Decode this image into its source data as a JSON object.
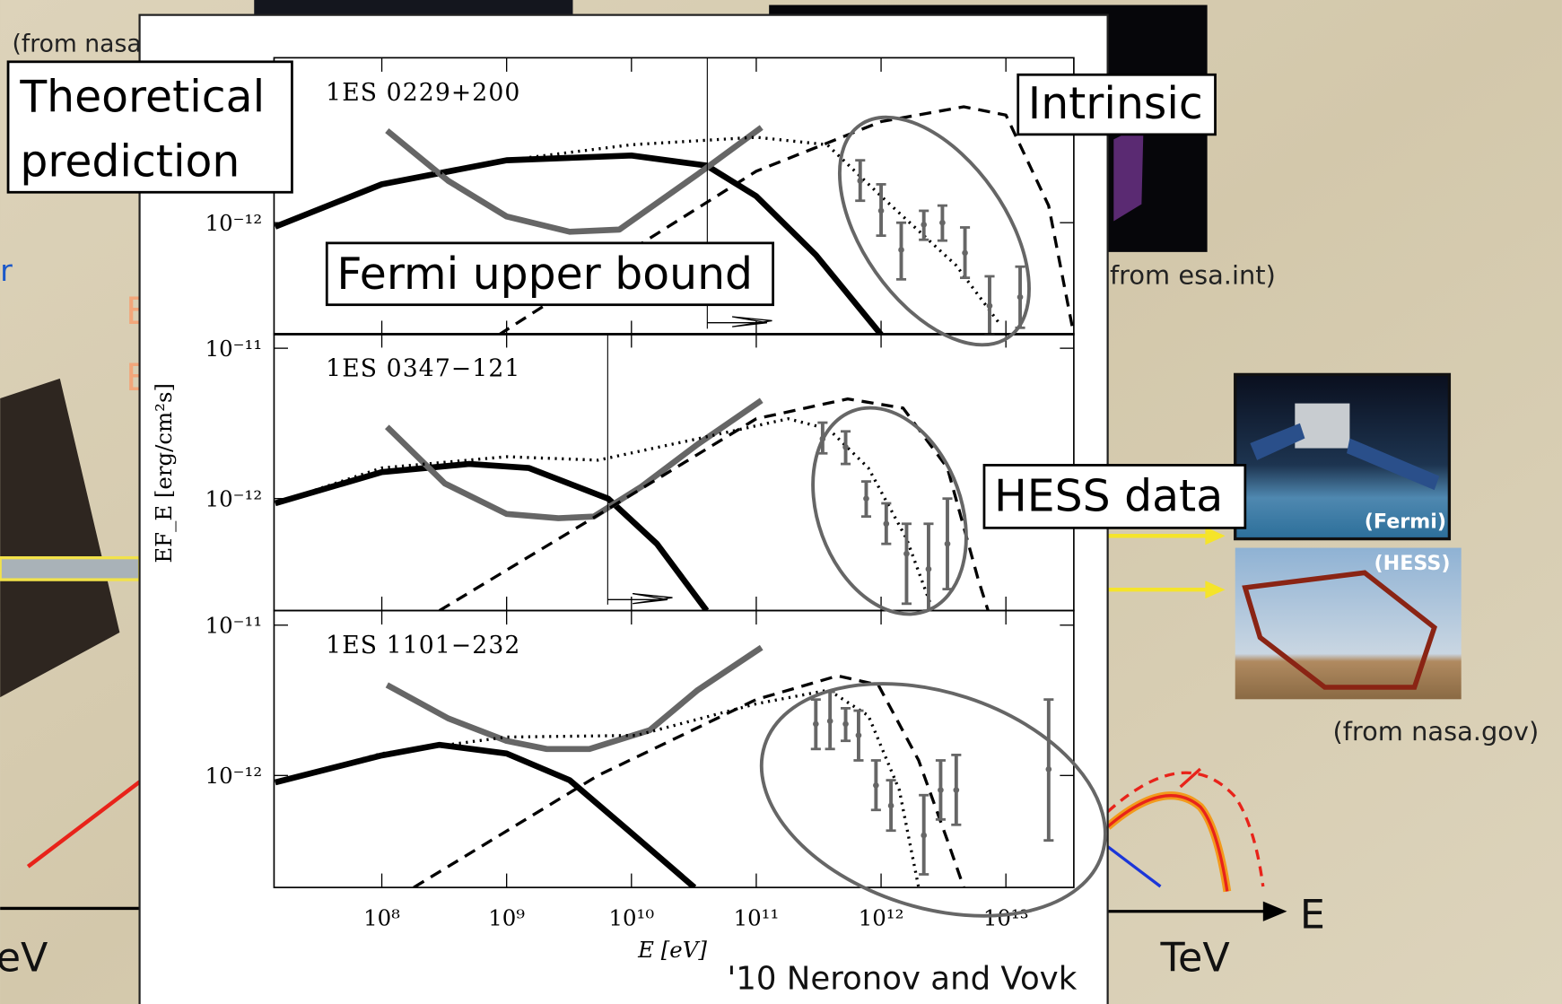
{
  "slide": {
    "source_left": "(from nasa.gov)",
    "blue_letter": "r",
    "orange_letters": [
      "E",
      "E"
    ],
    "left_unit": "eV",
    "source_esa": "(from esa.int)",
    "fermi_label": "(Fermi)",
    "hess_label": "(HESS)",
    "source_nasa": "(from nasa.gov)",
    "axis_unit": "TeV",
    "axis_name": "E"
  },
  "annotations": {
    "theoretical_prediction": [
      "Theoretical",
      "prediction"
    ],
    "intrinsic": "Intrinsic",
    "fermi_upper_bound": "Fermi upper bound",
    "hess_data": "HESS data",
    "citation": "'10 Neronov and Vovk"
  },
  "chart_data": [
    {
      "type": "line",
      "title": "1ES 0229+200",
      "xscale": "log",
      "yscale": "log",
      "xlim": [
        13700000.0,
        35000000000000.0
      ],
      "ylim": [
        1.8e-13,
        1.25e-11
      ],
      "yticks": [
        {
          "value": 1e-12,
          "label": "10⁻¹²"
        }
      ],
      "series": [
        {
          "color": "#000000",
          "width": 6,
          "dash": "solid",
          "x": [
            14000000.0,
            100000000.0,
            1000000000.0,
            10000000000.0,
            40000000000.0,
            100000000000.0,
            300000000000.0,
            1000000000000.0
          ],
          "values": [
            9.4e-13,
            1.8e-12,
            2.6e-12,
            2.8e-12,
            2.4e-12,
            1.5e-12,
            6.1e-13,
            1.8e-13
          ]
        },
        {
          "color": "#666666",
          "width": 6,
          "dash": "solid",
          "x": [
            110000000.0,
            340000000.0,
            1000000000.0,
            3200000000.0,
            8000000000.0,
            34000000000.0,
            110000000000.0
          ],
          "values": [
            4.1e-12,
            1.9e-12,
            1.1e-12,
            8.7e-13,
            9e-13,
            2.1e-12,
            4.3e-12
          ]
        },
        {
          "color": "#000000",
          "width": 3,
          "dash": "dashed",
          "x": [
            870000000.0,
            10000000000.0,
            100000000000.0,
            1000000000000.0,
            4600000000000.0,
            10000000000000.0,
            22000000000000.0,
            35000000000000.0
          ],
          "values": [
            1.8e-13,
            6.6e-13,
            2.2e-12,
            4.7e-12,
            5.9e-12,
            5.2e-12,
            1.3e-12,
            1.8e-13
          ]
        },
        {
          "color": "#000000",
          "width": 3,
          "dash": "dotted",
          "x": [
            14000000.0,
            100000000.0,
            1000000000.0,
            10000000000.0,
            100000000000.0,
            370000000000.0,
            1000000000000.0,
            4000000000000.0,
            9000000000000.0
          ],
          "values": [
            9.4e-13,
            1.8e-12,
            2.6e-12,
            3.3e-12,
            3.7e-12,
            3.3e-12,
            1.5e-12,
            5.2e-13,
            2.1e-13
          ]
        },
        {
          "color": "#666666",
          "marker": "errorbar",
          "x": [
            680000000000.0,
            1000000000000.0,
            1450000000000.0,
            2200000000000.0,
            3100000000000.0,
            4700000000000.0,
            7400000000000.0,
            13000000000000.0
          ],
          "values": [
            1.9e-12,
            1.2e-12,
            6.6e-13,
            9.7e-13,
            1e-12,
            6.3e-13,
            2.8e-13,
            3.2e-13
          ],
          "lower": [
            1.4e-12,
            8.2e-13,
            4.2e-13,
            7.7e-13,
            7.6e-13,
            4.3e-13,
            1.8e-13,
            2e-13
          ],
          "upper": [
            2.6e-12,
            1.8e-12,
            1e-12,
            1.2e-12,
            1.3e-12,
            9.3e-13,
            4.4e-13,
            5.1e-13
          ]
        }
      ]
    },
    {
      "type": "line",
      "title": "1ES 0347−121",
      "xscale": "log",
      "yscale": "log",
      "xlim": [
        13700000.0,
        35000000000000.0
      ],
      "ylim": [
        1.8e-13,
        1.25e-11
      ],
      "yticks": [
        {
          "value": 1e-11,
          "label": "10⁻¹¹"
        },
        {
          "value": 1e-12,
          "label": "10⁻¹²"
        }
      ],
      "y_label": "EF_E [erg/cm²s]",
      "series": [
        {
          "color": "#000000",
          "width": 6,
          "dash": "solid",
          "x": [
            14000000.0,
            100000000.0,
            500000000.0,
            1500000000.0,
            6500000000.0,
            16000000000.0,
            40000000000.0
          ],
          "values": [
            9.3e-13,
            1.5e-12,
            1.7e-12,
            1.6e-12,
            1e-12,
            5e-13,
            1.8e-13
          ]
        },
        {
          "color": "#666666",
          "width": 6,
          "dash": "solid",
          "x": [
            110000000.0,
            320000000.0,
            1000000000.0,
            2600000000.0,
            5000000000.0,
            12000000000.0,
            34000000000.0,
            110000000000.0
          ],
          "values": [
            3e-12,
            1.26e-12,
            7.9e-13,
            7.4e-13,
            7.6e-13,
            1.2e-12,
            2.3e-12,
            4.5e-12
          ]
        },
        {
          "color": "#000000",
          "width": 3,
          "dash": "dashed",
          "x": [
            290000000.0,
            6600000000.0,
            100000000000.0,
            540000000000.0,
            1500000000000.0,
            3400000000000.0,
            6000000000000.0,
            7200000000000.0
          ],
          "values": [
            1.8e-13,
            8.6e-13,
            3.4e-12,
            4.6e-12,
            4e-12,
            1.6e-12,
            2.9e-13,
            1.8e-13
          ]
        },
        {
          "color": "#000000",
          "width": 3,
          "dash": "dotted",
          "x": [
            14000000.0,
            100000000.0,
            1000000000.0,
            5400000000.0,
            34000000000.0,
            180000000000.0,
            380000000000.0,
            790000000000.0,
            1600000000000.0,
            2600000000000.0
          ],
          "values": [
            9.3e-13,
            1.6e-12,
            1.9e-12,
            1.8e-12,
            2.5e-12,
            3.4e-12,
            2.9e-12,
            1.6e-12,
            5.4e-13,
            1.8e-13
          ]
        },
        {
          "color": "#666666",
          "marker": "errorbar",
          "x": [
            340000000000.0,
            520000000000.0,
            760000000000.0,
            1100000000000.0,
            1600000000000.0,
            2400000000000.0,
            3400000000000.0
          ],
          "values": [
            2.5e-12,
            2.2e-12,
            1e-12,
            6.8e-13,
            4.3e-13,
            3.4e-13,
            5e-13
          ],
          "lower": [
            2e-12,
            1.7e-12,
            7.6e-13,
            5e-13,
            2e-13,
            1.8e-13,
            2.5e-13
          ],
          "upper": [
            3.2e-12,
            2.8e-12,
            1.3e-12,
            9.3e-13,
            6.8e-13,
            6.8e-13,
            1e-12
          ]
        }
      ]
    },
    {
      "type": "line",
      "title": "1ES 1101−232",
      "xscale": "log",
      "yscale": "log",
      "xlim": [
        13700000.0,
        35000000000000.0
      ],
      "ylim": [
        1.8e-13,
        1.25e-11
      ],
      "yticks": [
        {
          "value": 1e-11,
          "label": "10⁻¹¹"
        },
        {
          "value": 1e-12,
          "label": "10⁻¹²"
        }
      ],
      "xticks": [
        {
          "value": 100000000.0,
          "label": "10⁸"
        },
        {
          "value": 1000000000.0,
          "label": "10⁹"
        },
        {
          "value": 10000000000.0,
          "label": "10¹⁰"
        },
        {
          "value": 100000000000.0,
          "label": "10¹¹"
        },
        {
          "value": 1000000000000.0,
          "label": "10¹²"
        },
        {
          "value": 10000000000000.0,
          "label": "10¹³"
        }
      ],
      "x_label": "E [eV]",
      "series": [
        {
          "color": "#000000",
          "width": 6,
          "dash": "solid",
          "x": [
            14000000.0,
            100000000.0,
            290000000.0,
            1000000000.0,
            3200000000.0,
            9500000000.0,
            32000000000.0
          ],
          "values": [
            9e-13,
            1.36e-12,
            1.6e-12,
            1.4e-12,
            9.3e-13,
            4.3e-13,
            1.8e-13
          ]
        },
        {
          "color": "#666666",
          "width": 6,
          "dash": "solid",
          "x": [
            110000000.0,
            340000000.0,
            1000000000.0,
            2100000000.0,
            4600000000.0,
            14000000000.0,
            34000000000.0,
            110000000000.0
          ],
          "values": [
            4e-12,
            2.4e-12,
            1.7e-12,
            1.5e-12,
            1.5e-12,
            2e-12,
            3.7e-12,
            7.1e-12
          ]
        },
        {
          "color": "#000000",
          "width": 3,
          "dash": "dashed",
          "x": [
            180000000.0,
            5400000000.0,
            100000000000.0,
            450000000000.0,
            950000000000.0,
            2000000000000.0,
            3400000000000.0,
            4600000000000.0
          ],
          "values": [
            1.8e-13,
            1e-12,
            3.2e-12,
            4.6e-12,
            4e-12,
            1.26e-12,
            3.7e-13,
            1.8e-13
          ]
        },
        {
          "color": "#000000",
          "width": 3,
          "dash": "dotted",
          "x": [
            14000000.0,
            100000000.0,
            1000000000.0,
            11000000000.0,
            100000000000.0,
            380000000000.0,
            790000000000.0,
            1400000000000.0,
            2000000000000.0
          ],
          "values": [
            9e-13,
            1.4e-12,
            1.8e-12,
            1.85e-12,
            3e-12,
            3.7e-12,
            2.5e-12,
            8e-13,
            1.8e-13
          ]
        },
        {
          "color": "#666666",
          "marker": "errorbar",
          "x": [
            300000000000.0,
            390000000000.0,
            520000000000.0,
            660000000000.0,
            910000000000.0,
            1200000000000.0,
            2200000000000.0,
            3000000000000.0,
            4000000000000.0,
            22000000000000.0
          ],
          "values": [
            2.2e-12,
            2.3e-12,
            2.2e-12,
            1.85e-12,
            8.6e-13,
            6.3e-13,
            4e-13,
            8e-13,
            8e-13,
            1.1e-12
          ],
          "lower": [
            1.5e-12,
            1.5e-12,
            1.7e-12,
            1.26e-12,
            5.9e-13,
            4.3e-13,
            2.2e-13,
            5.1e-13,
            4.7e-13,
            3.7e-13
          ],
          "upper": [
            3.2e-12,
            3.6e-12,
            2.8e-12,
            2.7e-12,
            1.26e-12,
            9.3e-13,
            7.4e-13,
            1.26e-12,
            1.37e-12,
            3.2e-12
          ]
        }
      ]
    }
  ]
}
